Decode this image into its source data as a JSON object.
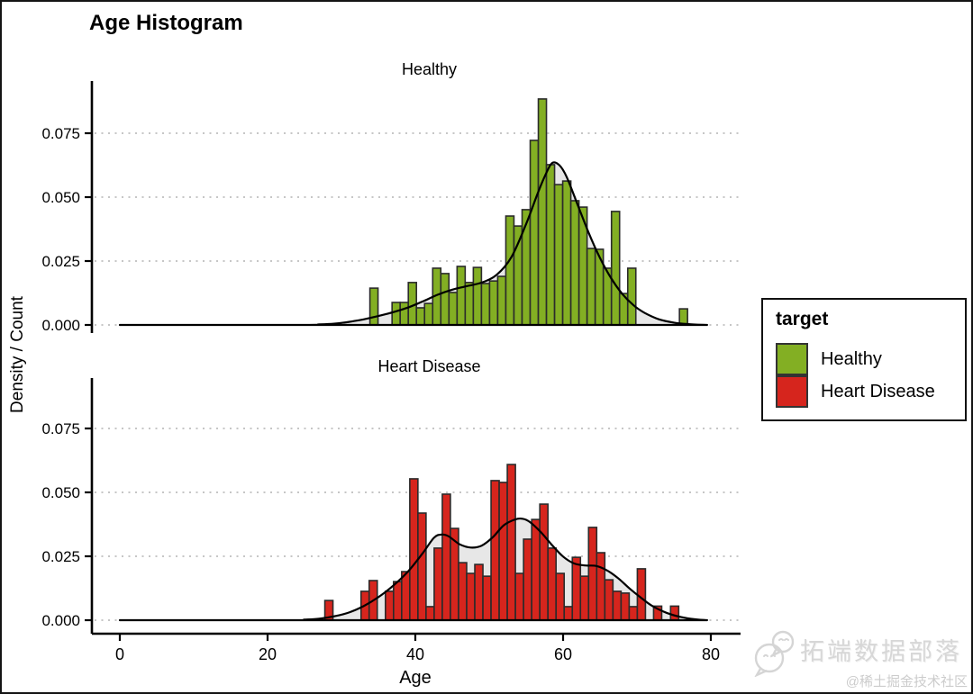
{
  "window": {
    "title": "Age Histogram"
  },
  "chart_data": {
    "type": "histogram",
    "subtype": "faceted histogram with kernel density overlay",
    "title": "Age Histogram",
    "xlabel": "Age",
    "ylabel": "Density / Count",
    "x_ticks": [
      0,
      20,
      40,
      60,
      80
    ],
    "y_tick_values": [
      0,
      0.025,
      0.05,
      0.075
    ],
    "y_tick_labels": [
      "0.000",
      "0.025",
      "0.050",
      "0.075"
    ],
    "xlim": [
      -4,
      84
    ],
    "ylim": [
      0,
      0.093
    ],
    "grid": "horizontal dotted",
    "bin_width_years": 1.1,
    "colors": {
      "healthy": "#83AF23",
      "heart_disease": "#D6251D",
      "density_fill": "#E7E7E7",
      "curve": "#000000",
      "bar_outline": "#2B2B2B",
      "gridline": "#C6C6C6",
      "axis": "#000000"
    },
    "legend": {
      "title": "target",
      "position": "right",
      "entries": [
        {
          "label": "Healthy",
          "color": "#83AF23"
        },
        {
          "label": "Heart Disease",
          "color": "#D6251D"
        }
      ]
    },
    "facets": [
      {
        "label": "Healthy",
        "fill": "#83AF23",
        "bars": [
          [
            34.4,
            0.0144
          ],
          [
            37.4,
            0.0088
          ],
          [
            38.5,
            0.0088
          ],
          [
            39.6,
            0.0166
          ],
          [
            40.7,
            0.0067
          ],
          [
            41.8,
            0.0084
          ],
          [
            42.9,
            0.0222
          ],
          [
            44.0,
            0.0201
          ],
          [
            45.1,
            0.0127
          ],
          [
            46.2,
            0.0229
          ],
          [
            47.3,
            0.0166
          ],
          [
            48.4,
            0.0225
          ],
          [
            49.5,
            0.0162
          ],
          [
            50.6,
            0.0172
          ],
          [
            51.7,
            0.019
          ],
          [
            52.8,
            0.0426
          ],
          [
            53.9,
            0.0387
          ],
          [
            55.0,
            0.0451
          ],
          [
            56.1,
            0.0722
          ],
          [
            57.2,
            0.0884
          ],
          [
            58.3,
            0.0627
          ],
          [
            59.4,
            0.0549
          ],
          [
            60.5,
            0.0563
          ],
          [
            61.6,
            0.0486
          ],
          [
            62.7,
            0.0461
          ],
          [
            63.8,
            0.0299
          ],
          [
            64.9,
            0.0296
          ],
          [
            66.0,
            0.0222
          ],
          [
            67.1,
            0.0444
          ],
          [
            68.2,
            0.0123
          ],
          [
            69.3,
            0.0222
          ],
          [
            76.3,
            0.0063
          ]
        ],
        "density": [
          [
            0,
            0
          ],
          [
            24,
            0
          ],
          [
            27,
            0.0002
          ],
          [
            29,
            0.0005
          ],
          [
            31,
            0.0012
          ],
          [
            33,
            0.0022
          ],
          [
            35,
            0.0035
          ],
          [
            37,
            0.005
          ],
          [
            39,
            0.0068
          ],
          [
            41,
            0.0092
          ],
          [
            43,
            0.0118
          ],
          [
            45,
            0.0138
          ],
          [
            47,
            0.0152
          ],
          [
            49,
            0.0166
          ],
          [
            51,
            0.0196
          ],
          [
            53,
            0.0265
          ],
          [
            55,
            0.0395
          ],
          [
            56.5,
            0.051
          ],
          [
            57.5,
            0.058
          ],
          [
            58.5,
            0.0633
          ],
          [
            59.5,
            0.0625
          ],
          [
            60.5,
            0.0578
          ],
          [
            62,
            0.0468
          ],
          [
            63.5,
            0.0358
          ],
          [
            65,
            0.0262
          ],
          [
            66.5,
            0.0183
          ],
          [
            68,
            0.0122
          ],
          [
            69.5,
            0.0078
          ],
          [
            71,
            0.0048
          ],
          [
            73,
            0.0022
          ],
          [
            75,
            0.0009
          ],
          [
            77,
            0.0003
          ],
          [
            79.5,
            0
          ]
        ]
      },
      {
        "label": "Heart Disease",
        "fill": "#D6251D",
        "bars": [
          [
            28.3,
            0.0077
          ],
          [
            33.2,
            0.0113
          ],
          [
            34.3,
            0.0155
          ],
          [
            36.5,
            0.0113
          ],
          [
            37.6,
            0.0151
          ],
          [
            38.7,
            0.019
          ],
          [
            39.8,
            0.0553
          ],
          [
            40.9,
            0.0419
          ],
          [
            42.0,
            0.0053
          ],
          [
            43.1,
            0.0282
          ],
          [
            44.2,
            0.0493
          ],
          [
            45.3,
            0.0359
          ],
          [
            46.4,
            0.0225
          ],
          [
            47.5,
            0.0183
          ],
          [
            48.6,
            0.0218
          ],
          [
            49.7,
            0.0172
          ],
          [
            50.8,
            0.0546
          ],
          [
            51.9,
            0.0539
          ],
          [
            53.0,
            0.0609
          ],
          [
            54.1,
            0.0183
          ],
          [
            55.2,
            0.0317
          ],
          [
            56.3,
            0.0394
          ],
          [
            57.4,
            0.0454
          ],
          [
            58.5,
            0.0282
          ],
          [
            59.6,
            0.0183
          ],
          [
            60.7,
            0.0053
          ],
          [
            61.8,
            0.0246
          ],
          [
            62.9,
            0.0172
          ],
          [
            64.0,
            0.0363
          ],
          [
            65.1,
            0.0264
          ],
          [
            66.2,
            0.0158
          ],
          [
            67.3,
            0.0113
          ],
          [
            68.4,
            0.0106
          ],
          [
            69.5,
            0.0053
          ],
          [
            70.6,
            0.0201
          ],
          [
            72.8,
            0.0055
          ],
          [
            75.1,
            0.0055
          ]
        ],
        "density": [
          [
            0,
            0
          ],
          [
            23,
            0
          ],
          [
            25,
            0.0002
          ],
          [
            27,
            0.0006
          ],
          [
            29,
            0.0015
          ],
          [
            31,
            0.003
          ],
          [
            33,
            0.0055
          ],
          [
            35,
            0.009
          ],
          [
            37,
            0.0135
          ],
          [
            39,
            0.019
          ],
          [
            41,
            0.0262
          ],
          [
            42.5,
            0.0322
          ],
          [
            43.5,
            0.0335
          ],
          [
            44.5,
            0.0328
          ],
          [
            46,
            0.0297
          ],
          [
            47.5,
            0.0284
          ],
          [
            49,
            0.0292
          ],
          [
            50.5,
            0.0325
          ],
          [
            52,
            0.0372
          ],
          [
            53.5,
            0.0394
          ],
          [
            54.5,
            0.0397
          ],
          [
            55.5,
            0.0384
          ],
          [
            57,
            0.0344
          ],
          [
            58.5,
            0.0294
          ],
          [
            60,
            0.0249
          ],
          [
            61.5,
            0.0222
          ],
          [
            63,
            0.0214
          ],
          [
            64.5,
            0.0212
          ],
          [
            66,
            0.0194
          ],
          [
            67.5,
            0.0163
          ],
          [
            69,
            0.0124
          ],
          [
            70.5,
            0.0089
          ],
          [
            72,
            0.0057
          ],
          [
            74,
            0.0029
          ],
          [
            76,
            0.0012
          ],
          [
            78,
            0.0003
          ],
          [
            79.5,
            0
          ]
        ]
      }
    ]
  },
  "watermark": {
    "brand": "拓端数据部落",
    "community": "@稀土掘金技术社区"
  }
}
